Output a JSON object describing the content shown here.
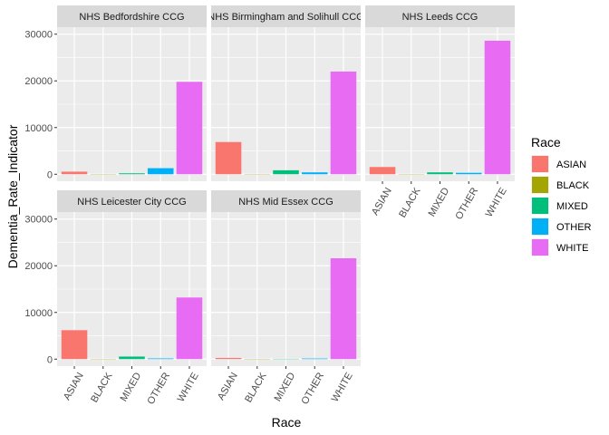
{
  "chart_data": {
    "type": "bar",
    "layout": "facet_wrap",
    "xlabel": "Race",
    "ylabel": "Dementia_Rate_Indicator",
    "categories": [
      "ASIAN",
      "BLACK",
      "MIXED",
      "OTHER",
      "WHITE"
    ],
    "ylim": [
      -1500,
      31500
    ],
    "yticks": [
      0,
      10000,
      20000,
      30000
    ],
    "grid": true,
    "legend": {
      "title": "Race",
      "placement": "right",
      "entries": [
        "ASIAN",
        "BLACK",
        "MIXED",
        "OTHER",
        "WHITE"
      ]
    },
    "colors": {
      "ASIAN": "#F8766D",
      "BLACK": "#A3A500",
      "MIXED": "#00BF7D",
      "OTHER": "#00B0F6",
      "WHITE": "#E76BF3"
    },
    "facets": [
      {
        "title": "NHS Bedfordshire CCG",
        "values": [
          550,
          50,
          200,
          1300,
          19800
        ]
      },
      {
        "title": "NHS Birmingham and Solihull CCG",
        "values": [
          6900,
          50,
          850,
          400,
          22000
        ]
      },
      {
        "title": "NHS Leeds CCG",
        "values": [
          1550,
          30,
          400,
          300,
          28600
        ]
      },
      {
        "title": "NHS Leicester City CCG",
        "values": [
          6200,
          40,
          550,
          150,
          13200
        ]
      },
      {
        "title": "NHS Mid Essex CCG",
        "values": [
          250,
          10,
          60,
          130,
          21600
        ]
      }
    ]
  }
}
